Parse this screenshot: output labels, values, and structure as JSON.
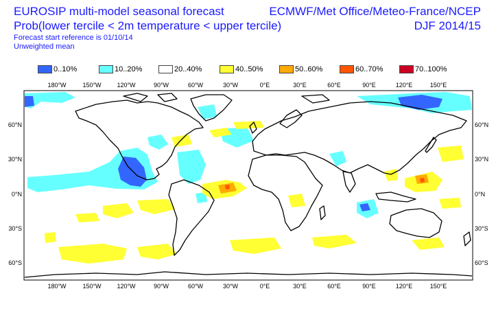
{
  "header": {
    "title_line1": "EUROSIP multi-model seasonal forecast",
    "title_line2": "Prob(lower tercile < 2m temperature < upper tercile)",
    "subtitle_line1": "Forecast start reference is 01/10/14",
    "subtitle_line2": "Unweighted mean",
    "producers": "ECMWF/Met Office/Meteo-France/NCEP",
    "season": "DJF 2014/15"
  },
  "legend": [
    {
      "label": "0..10%",
      "color": "#3366ff"
    },
    {
      "label": "10..20%",
      "color": "#66ffff"
    },
    {
      "label": "20..40%",
      "color": "#ffffff"
    },
    {
      "label": "40..50%",
      "color": "#ffff33"
    },
    {
      "label": "50..60%",
      "color": "#ffaa00"
    },
    {
      "label": "60..70%",
      "color": "#ff5500"
    },
    {
      "label": "70..100%",
      "color": "#cc0022"
    }
  ],
  "axes": {
    "lon_labels": [
      "180°W",
      "150°W",
      "120°W",
      "90°W",
      "60°W",
      "30°W",
      "0°E",
      "30°E",
      "60°E",
      "90°E",
      "120°E",
      "150°E"
    ],
    "lat_labels": [
      "60°N",
      "30°N",
      "0°N",
      "30°S",
      "60°S"
    ]
  }
}
